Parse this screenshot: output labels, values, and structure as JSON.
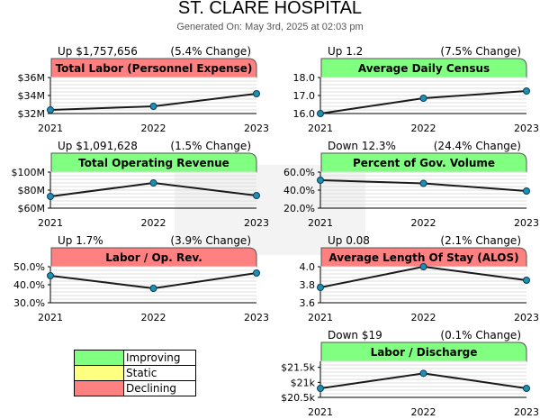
{
  "header": {
    "title": "ST. CLARE HOSPITAL",
    "generated": "Generated On: May 3rd, 2025 at 02:03 pm"
  },
  "colors": {
    "improving": "#80ff80",
    "static": "#ffff80",
    "declining": "#ff8080",
    "line": "#1a1a1a",
    "marker": "#1f8fb5"
  },
  "legend": [
    {
      "label": "Improving",
      "status": "improving"
    },
    {
      "label": "Static",
      "status": "static"
    },
    {
      "label": "Declining",
      "status": "declining"
    }
  ],
  "chart_data": [
    {
      "type": "line",
      "title": "Total Labor (Personnel Expense)",
      "status": "declining",
      "change": "Up $1,757,656",
      "pct": "(5.4% Change)",
      "x": [
        "2021",
        "2022",
        "2023"
      ],
      "values": [
        32.4,
        32.8,
        34.2
      ],
      "ylim": [
        32,
        36
      ],
      "yticks": [
        {
          "v": 36,
          "label": "$36M"
        },
        {
          "v": 34,
          "label": "$34M"
        },
        {
          "v": 32,
          "label": "$32M"
        }
      ]
    },
    {
      "type": "line",
      "title": "Average Daily Census",
      "status": "improving",
      "change": "Up 1.2",
      "pct": "(7.5% Change)",
      "x": [
        "2021",
        "2022",
        "2023"
      ],
      "values": [
        16.0,
        16.85,
        17.25
      ],
      "ylim": [
        16,
        18
      ],
      "yticks": [
        {
          "v": 18,
          "label": "18.0"
        },
        {
          "v": 17,
          "label": "17.0"
        },
        {
          "v": 16,
          "label": "16.0"
        }
      ]
    },
    {
      "type": "line",
      "title": "Total Operating Revenue",
      "status": "improving",
      "change": "Up $1,091,628",
      "pct": "(1.5% Change)",
      "x": [
        "2021",
        "2022",
        "2023"
      ],
      "values": [
        73,
        88,
        74
      ],
      "ylim": [
        60,
        100
      ],
      "yticks": [
        {
          "v": 100,
          "label": "$100M"
        },
        {
          "v": 80,
          "label": "$80M"
        },
        {
          "v": 60,
          "label": "$60M"
        }
      ]
    },
    {
      "type": "line",
      "title": "Percent of Gov. Volume",
      "status": "improving",
      "change": "Down 12.3%",
      "pct": "(24.4% Change)",
      "x": [
        "2021",
        "2022",
        "2023"
      ],
      "values": [
        51,
        47.5,
        39
      ],
      "ylim": [
        20,
        60
      ],
      "yticks": [
        {
          "v": 60,
          "label": "60.0%"
        },
        {
          "v": 40,
          "label": "40.0%"
        },
        {
          "v": 20,
          "label": "20.0%"
        }
      ]
    },
    {
      "type": "line",
      "title": "Labor / Op. Rev.",
      "status": "declining",
      "change": "Up 1.7%",
      "pct": "(3.9% Change)",
      "x": [
        "2021",
        "2022",
        "2023"
      ],
      "values": [
        45,
        38,
        46.5
      ],
      "ylim": [
        30,
        50
      ],
      "yticks": [
        {
          "v": 50,
          "label": "50.0%"
        },
        {
          "v": 40,
          "label": "40.0%"
        },
        {
          "v": 30,
          "label": "30.0%"
        }
      ]
    },
    {
      "type": "line",
      "title": "Average Length Of Stay (ALOS)",
      "status": "declining",
      "change": "Up 0.08",
      "pct": "(2.1% Change)",
      "x": [
        "2021",
        "2022",
        "2023"
      ],
      "values": [
        3.77,
        4.0,
        3.85
      ],
      "ylim": [
        3.6,
        4.0
      ],
      "yticks": [
        {
          "v": 4.0,
          "label": "4.0"
        },
        {
          "v": 3.8,
          "label": "3.8"
        },
        {
          "v": 3.6,
          "label": "3.6"
        }
      ]
    },
    {
      "type": "line",
      "title": "Labor / Discharge",
      "status": "improving",
      "change": "Down $19",
      "pct": "(0.1% Change)",
      "x": [
        "2021",
        "2022",
        "2023"
      ],
      "values": [
        20.8,
        21.3,
        20.8
      ],
      "ylim": [
        20.5,
        21.7
      ],
      "yticks": [
        {
          "v": 21.5,
          "label": "$21.5k"
        },
        {
          "v": 21.0,
          "label": "$21k"
        },
        {
          "v": 20.5,
          "label": "$20.5k"
        }
      ]
    }
  ]
}
